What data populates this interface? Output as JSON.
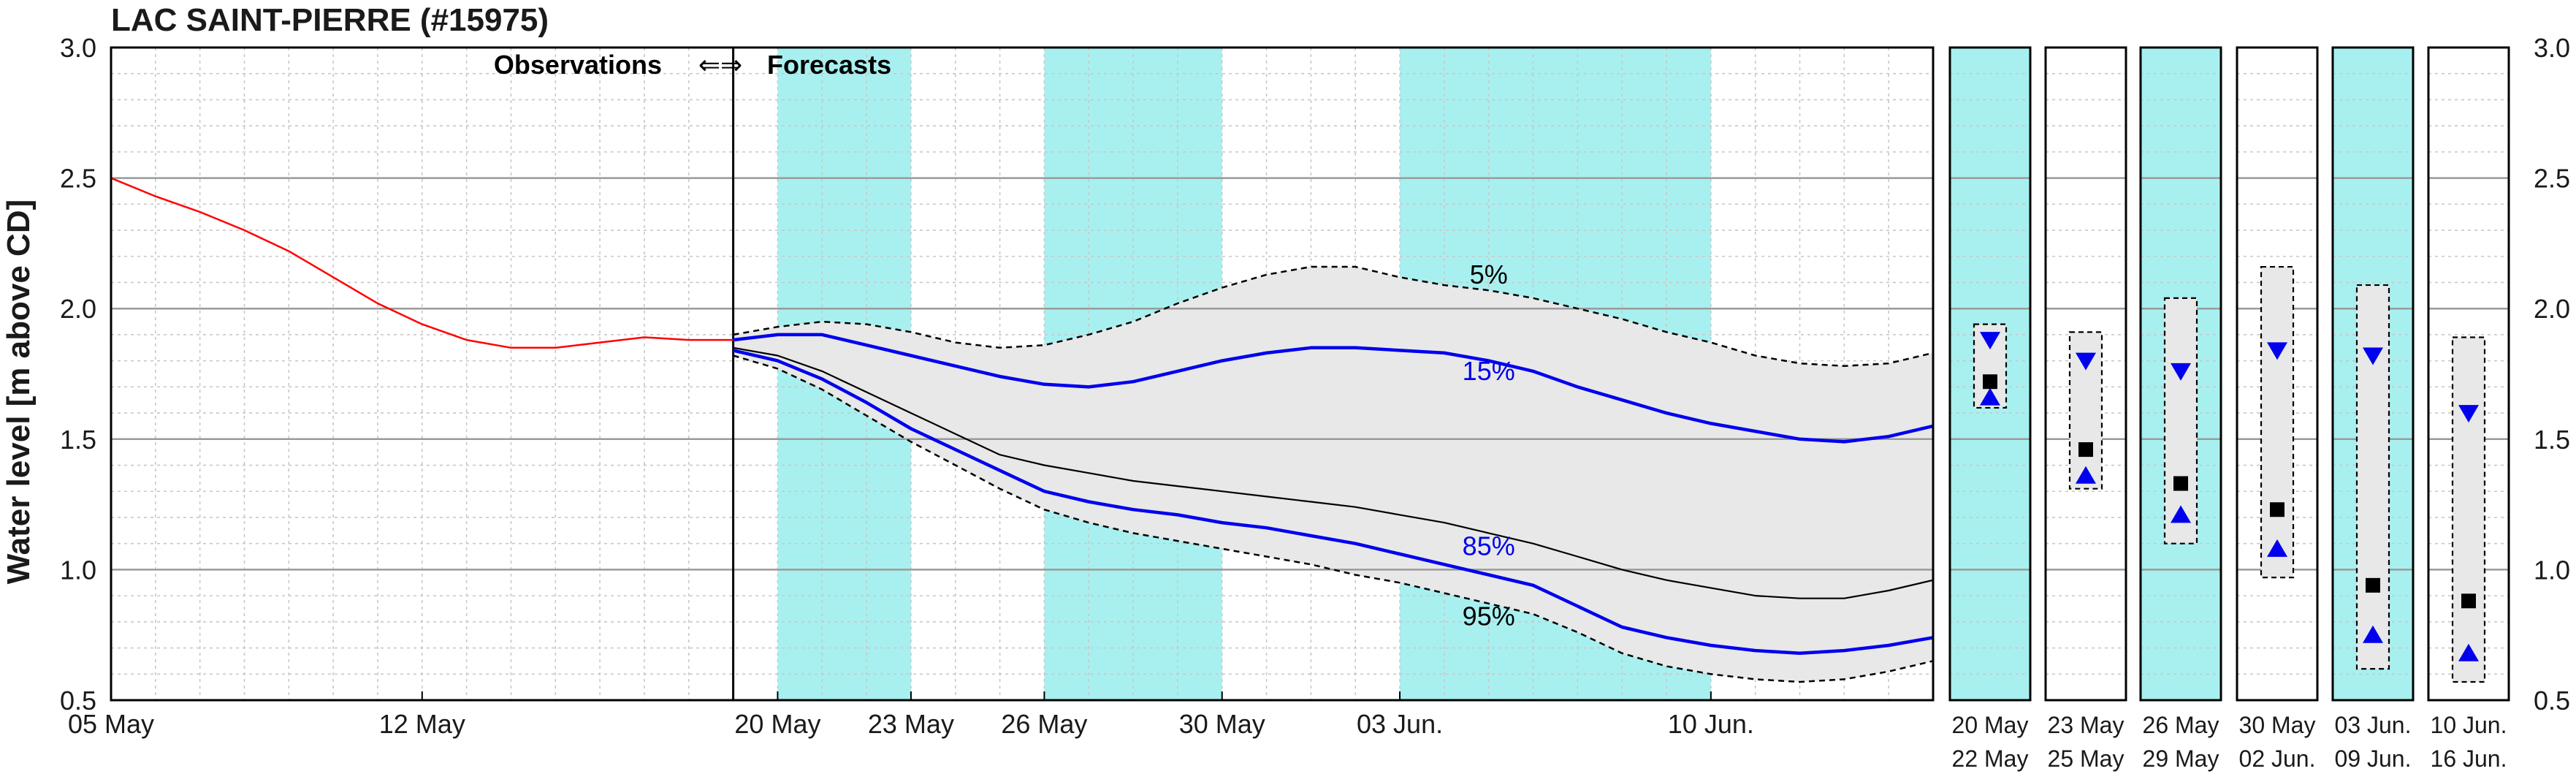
{
  "chart_data": {
    "type": "line",
    "title": "LAC SAINT-PIERRE (#15975)",
    "ylabel": "Water level [m above CD]",
    "ylim": [
      0.5,
      3.0
    ],
    "yticks": [
      "0.5",
      "1.0",
      "1.5",
      "2.0",
      "2.5",
      "3.0"
    ],
    "x_range_days": [
      0,
      41
    ],
    "xticks": [
      {
        "day": 0,
        "label": "05 May"
      },
      {
        "day": 7,
        "label": "12 May"
      },
      {
        "day": 15,
        "label": "20 May"
      },
      {
        "day": 18,
        "label": "23 May"
      },
      {
        "day": 21,
        "label": "26 May"
      },
      {
        "day": 25,
        "label": "30 May"
      },
      {
        "day": 29,
        "label": "03 Jun."
      },
      {
        "day": 36,
        "label": "10 Jun."
      }
    ],
    "divider_day": 14,
    "observations_label": "Observations",
    "forecasts_label": "Forecasts",
    "arrows_label": "⇐⇒",
    "shaded_periods": [
      [
        15,
        18
      ],
      [
        21,
        25
      ],
      [
        29,
        36
      ]
    ],
    "colors": {
      "observed": "#ff0000",
      "percentile_blue": "#0000ee",
      "band_fill": "#e8e8e8",
      "period_shade": "#a8f0f0",
      "median": "#000000"
    },
    "series": [
      {
        "name": "Observations",
        "x": [
          0,
          1,
          2,
          3,
          4,
          5,
          6,
          7,
          8,
          9,
          10,
          11,
          12,
          13,
          14
        ],
        "y": [
          2.5,
          2.43,
          2.37,
          2.3,
          2.22,
          2.12,
          2.02,
          1.94,
          1.88,
          1.85,
          1.85,
          1.87,
          1.89,
          1.88,
          1.88
        ]
      },
      {
        "name": "5%",
        "x": [
          14,
          15,
          16,
          17,
          18,
          19,
          20,
          21,
          22,
          23,
          24,
          25,
          26,
          27,
          28,
          29,
          30,
          31,
          32,
          33,
          34,
          35,
          36,
          37,
          38,
          39,
          40,
          41
        ],
        "y": [
          1.9,
          1.93,
          1.95,
          1.94,
          1.91,
          1.87,
          1.85,
          1.86,
          1.9,
          1.95,
          2.02,
          2.08,
          2.13,
          2.16,
          2.16,
          2.12,
          2.09,
          2.07,
          2.04,
          2.0,
          1.96,
          1.91,
          1.87,
          1.82,
          1.79,
          1.78,
          1.79,
          1.83
        ]
      },
      {
        "name": "15%",
        "x": [
          14,
          15,
          16,
          17,
          18,
          19,
          20,
          21,
          22,
          23,
          24,
          25,
          26,
          27,
          28,
          29,
          30,
          31,
          32,
          33,
          34,
          35,
          36,
          37,
          38,
          39,
          40,
          41
        ],
        "y": [
          1.88,
          1.9,
          1.9,
          1.86,
          1.82,
          1.78,
          1.74,
          1.71,
          1.7,
          1.72,
          1.76,
          1.8,
          1.83,
          1.85,
          1.85,
          1.84,
          1.83,
          1.8,
          1.76,
          1.7,
          1.65,
          1.6,
          1.56,
          1.53,
          1.5,
          1.49,
          1.51,
          1.55
        ]
      },
      {
        "name": "Median",
        "x": [
          14,
          15,
          16,
          17,
          18,
          19,
          20,
          21,
          22,
          23,
          24,
          25,
          26,
          27,
          28,
          29,
          30,
          31,
          32,
          33,
          34,
          35,
          36,
          37,
          38,
          39,
          40,
          41
        ],
        "y": [
          1.85,
          1.82,
          1.76,
          1.68,
          1.6,
          1.52,
          1.44,
          1.4,
          1.37,
          1.34,
          1.32,
          1.3,
          1.28,
          1.26,
          1.24,
          1.21,
          1.18,
          1.14,
          1.1,
          1.05,
          1.0,
          0.96,
          0.93,
          0.9,
          0.89,
          0.89,
          0.92,
          0.96
        ]
      },
      {
        "name": "85%",
        "x": [
          14,
          15,
          16,
          17,
          18,
          19,
          20,
          21,
          22,
          23,
          24,
          25,
          26,
          27,
          28,
          29,
          30,
          31,
          32,
          33,
          34,
          35,
          36,
          37,
          38,
          39,
          40,
          41
        ],
        "y": [
          1.84,
          1.8,
          1.73,
          1.64,
          1.54,
          1.46,
          1.38,
          1.3,
          1.26,
          1.23,
          1.21,
          1.18,
          1.16,
          1.13,
          1.1,
          1.06,
          1.02,
          0.98,
          0.94,
          0.86,
          0.78,
          0.74,
          0.71,
          0.69,
          0.68,
          0.69,
          0.71,
          0.74
        ]
      },
      {
        "name": "95%",
        "x": [
          14,
          15,
          16,
          17,
          18,
          19,
          20,
          21,
          22,
          23,
          24,
          25,
          26,
          27,
          28,
          29,
          30,
          31,
          32,
          33,
          34,
          35,
          36,
          37,
          38,
          39,
          40,
          41
        ],
        "y": [
          1.82,
          1.77,
          1.69,
          1.59,
          1.49,
          1.4,
          1.31,
          1.23,
          1.18,
          1.14,
          1.11,
          1.08,
          1.05,
          1.02,
          0.98,
          0.95,
          0.91,
          0.87,
          0.83,
          0.76,
          0.68,
          0.63,
          0.6,
          0.58,
          0.57,
          0.58,
          0.61,
          0.65
        ]
      }
    ],
    "line_labels": [
      "5%",
      "15%",
      "85%",
      "95%"
    ],
    "weekly_panels": [
      {
        "start": "20",
        "start_month": "May",
        "end": "22",
        "end_month": "May",
        "shaded": true,
        "box": [
          1.62,
          1.94
        ],
        "median": 1.72,
        "high": 1.88,
        "low": 1.66
      },
      {
        "start": "23",
        "start_month": "May",
        "end": "25",
        "end_month": "May",
        "shaded": false,
        "box": [
          1.31,
          1.91
        ],
        "median": 1.46,
        "high": 1.8,
        "low": 1.36
      },
      {
        "start": "26",
        "start_month": "May",
        "end": "29",
        "end_month": "May",
        "shaded": true,
        "box": [
          1.1,
          2.04
        ],
        "median": 1.33,
        "high": 1.76,
        "low": 1.21
      },
      {
        "start": "30",
        "start_month": "May",
        "end": "02",
        "end_month": "Jun.",
        "shaded": false,
        "box": [
          0.97,
          2.16
        ],
        "median": 1.23,
        "high": 1.84,
        "low": 1.08
      },
      {
        "start": "03",
        "start_month": "Jun.",
        "end": "09",
        "end_month": "Jun.",
        "shaded": true,
        "box": [
          0.62,
          2.09
        ],
        "median": 0.94,
        "high": 1.82,
        "low": 0.75
      },
      {
        "start": "10",
        "start_month": "Jun.",
        "end": "16",
        "end_month": "Jun.",
        "shaded": false,
        "box": [
          0.57,
          1.89
        ],
        "median": 0.88,
        "high": 1.6,
        "low": 0.68
      }
    ]
  }
}
